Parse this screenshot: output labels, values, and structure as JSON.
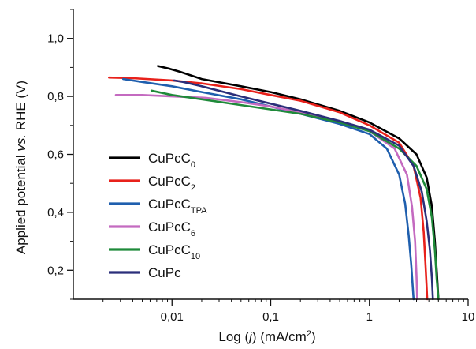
{
  "chart_data": {
    "type": "line",
    "title": "",
    "ylabel": "Applied potential vs. RHE (V)",
    "ylabel_parts": [
      "Applied potential ",
      "vs.",
      " RHE (V)"
    ],
    "xlabel": "Log (j) (mA/cm2)",
    "xlabel_parts": [
      "Log (",
      "j",
      ") (mA/cm",
      "2",
      ")"
    ],
    "x_scale": "log",
    "xlim": [
      0.001,
      10
    ],
    "ylim": [
      0.1,
      1.1
    ],
    "x_ticks": [
      0.01,
      0.1,
      1,
      10
    ],
    "x_tick_labels": [
      "0,01",
      "0,1",
      "1",
      "10"
    ],
    "y_ticks": [
      0.2,
      0.4,
      0.6,
      0.8,
      1.0
    ],
    "y_tick_labels": [
      "0,2",
      "0,4",
      "0,6",
      "0,8",
      "1,0"
    ],
    "grid": false,
    "legend_position": "bottom-left",
    "series": [
      {
        "base": "CuPcC",
        "sub": "0",
        "color": "#000000",
        "x": [
          0.0072,
          0.0095,
          0.012,
          0.02,
          0.05,
          0.1,
          0.2,
          0.5,
          1.0,
          2.0,
          3.0,
          3.8,
          4.3,
          4.6,
          4.8,
          4.9,
          5.0
        ],
        "y": [
          0.905,
          0.895,
          0.885,
          0.86,
          0.835,
          0.815,
          0.79,
          0.75,
          0.71,
          0.655,
          0.6,
          0.52,
          0.42,
          0.3,
          0.2,
          0.15,
          0.1
        ]
      },
      {
        "base": "CuPcC",
        "sub": "2",
        "color": "#e8211b",
        "x": [
          0.0023,
          0.004,
          0.01,
          0.02,
          0.05,
          0.1,
          0.2,
          0.5,
          1.0,
          2.0,
          2.8,
          3.3,
          3.55,
          3.7,
          3.8,
          3.85
        ],
        "y": [
          0.865,
          0.863,
          0.855,
          0.845,
          0.825,
          0.805,
          0.785,
          0.745,
          0.7,
          0.64,
          0.56,
          0.45,
          0.33,
          0.22,
          0.14,
          0.1
        ]
      },
      {
        "base": "CuPcC",
        "sub": "TPA",
        "color": "#1f5fae",
        "x": [
          0.0032,
          0.005,
          0.01,
          0.02,
          0.05,
          0.1,
          0.2,
          0.5,
          1.0,
          1.5,
          2.0,
          2.3,
          2.5,
          2.65,
          2.75,
          2.8
        ],
        "y": [
          0.86,
          0.85,
          0.835,
          0.815,
          0.79,
          0.765,
          0.74,
          0.705,
          0.67,
          0.62,
          0.53,
          0.43,
          0.32,
          0.22,
          0.14,
          0.1
        ]
      },
      {
        "base": "CuPcC",
        "sub": "6",
        "color": "#c46ac0",
        "x": [
          0.0027,
          0.005,
          0.01,
          0.022,
          0.05,
          0.1,
          0.2,
          0.5,
          1.0,
          1.8,
          2.4,
          2.7,
          2.9,
          3.0,
          3.05
        ],
        "y": [
          0.805,
          0.805,
          0.8,
          0.795,
          0.78,
          0.765,
          0.745,
          0.715,
          0.68,
          0.62,
          0.53,
          0.42,
          0.3,
          0.18,
          0.1
        ]
      },
      {
        "base": "CuPcC",
        "sub": "10",
        "color": "#1f8a3a",
        "x": [
          0.0062,
          0.01,
          0.02,
          0.05,
          0.1,
          0.2,
          0.5,
          1.0,
          2.0,
          3.0,
          3.8,
          4.3,
          4.6,
          4.8,
          5.0
        ],
        "y": [
          0.82,
          0.805,
          0.79,
          0.77,
          0.755,
          0.74,
          0.71,
          0.68,
          0.62,
          0.56,
          0.48,
          0.38,
          0.27,
          0.17,
          0.1
        ]
      },
      {
        "base": "CuPc",
        "sub": "",
        "color": "#2b2f7a",
        "x": [
          0.0105,
          0.013,
          0.02,
          0.05,
          0.1,
          0.2,
          0.5,
          1.0,
          2.0,
          2.8,
          3.4,
          3.8,
          4.1,
          4.3,
          4.4
        ],
        "y": [
          0.855,
          0.85,
          0.835,
          0.8,
          0.775,
          0.75,
          0.715,
          0.685,
          0.63,
          0.56,
          0.47,
          0.37,
          0.27,
          0.17,
          0.1
        ]
      }
    ]
  }
}
